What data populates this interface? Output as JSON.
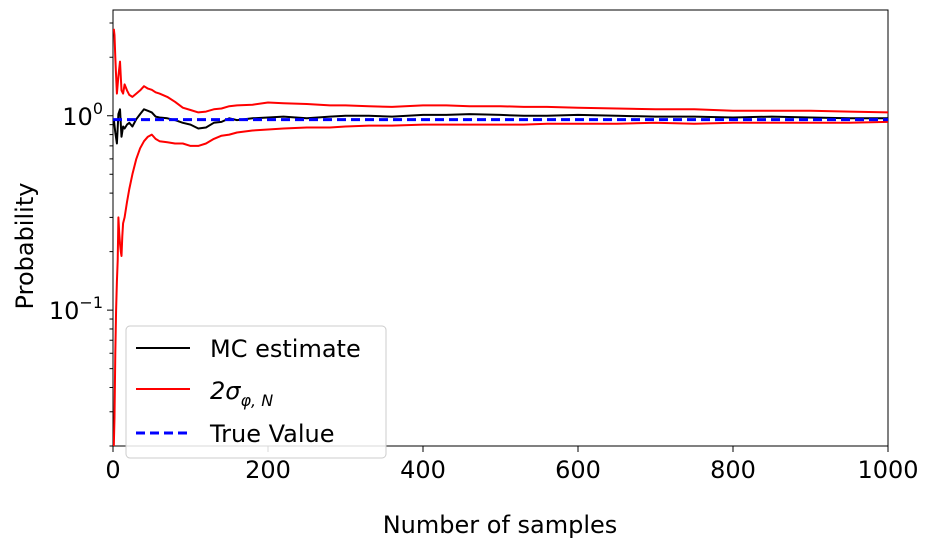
{
  "chart_data": {
    "type": "line",
    "title": "",
    "xlabel": "Number of samples",
    "ylabel": "Probability",
    "xlim": [
      0,
      1000
    ],
    "ylim": [
      0.02,
      3.5
    ],
    "yscale": "log",
    "grid": false,
    "legend_position": "lower-left",
    "x_ticks": [
      0,
      200,
      400,
      600,
      800,
      1000
    ],
    "x_tick_labels": [
      "0",
      "200",
      "400",
      "600",
      "800",
      "1000"
    ],
    "y_ticks": [
      {
        "value": 1.0,
        "base": "10",
        "exponent": "0"
      },
      {
        "value": 0.1,
        "base": "10",
        "exponent": "−1"
      }
    ],
    "series": [
      {
        "name": "MC estimate",
        "color": "#000000",
        "style": "solid",
        "x": [
          1,
          3,
          5,
          7,
          9,
          11,
          13,
          15,
          18,
          21,
          25,
          30,
          35,
          40,
          45,
          50,
          55,
          60,
          70,
          80,
          90,
          100,
          110,
          120,
          130,
          140,
          150,
          160,
          180,
          200,
          220,
          250,
          280,
          300,
          330,
          360,
          400,
          430,
          460,
          500,
          530,
          560,
          600,
          650,
          700,
          750,
          800,
          850,
          900,
          950,
          1000
        ],
        "y": [
          0.96,
          0.82,
          0.72,
          1.02,
          1.08,
          0.78,
          0.88,
          0.86,
          0.9,
          0.92,
          0.88,
          0.96,
          1.02,
          1.08,
          1.06,
          1.04,
          0.99,
          0.98,
          0.97,
          0.95,
          0.92,
          0.9,
          0.86,
          0.87,
          0.92,
          0.93,
          0.97,
          0.95,
          0.97,
          0.98,
          0.99,
          0.97,
          0.99,
          1.0,
          1.0,
          0.99,
          1.01,
          1.01,
          1.02,
          1.01,
          1.0,
          1.0,
          1.01,
          1.0,
          0.99,
          0.99,
          0.98,
          0.99,
          0.98,
          0.97,
          0.97
        ]
      },
      {
        "name": "2σ_{φ,N}",
        "color": "#ff0000",
        "style": "solid",
        "x": [
          1,
          2,
          3,
          4,
          5,
          7,
          9,
          11,
          13,
          15,
          18,
          21,
          25,
          30,
          35,
          40,
          45,
          50,
          55,
          60,
          70,
          80,
          90,
          100,
          110,
          120,
          130,
          140,
          150,
          160,
          180,
          200,
          220,
          250,
          280,
          300,
          330,
          360,
          400,
          430,
          460,
          500,
          530,
          560,
          600,
          650,
          700,
          750,
          800,
          850,
          900,
          950,
          1000
        ],
        "y": [
          2.8,
          2.6,
          2.0,
          1.6,
          1.3,
          1.6,
          1.9,
          1.35,
          1.3,
          1.45,
          1.35,
          1.28,
          1.25,
          1.3,
          1.35,
          1.42,
          1.38,
          1.36,
          1.32,
          1.3,
          1.25,
          1.18,
          1.1,
          1.07,
          1.04,
          1.05,
          1.08,
          1.09,
          1.12,
          1.13,
          1.14,
          1.17,
          1.16,
          1.15,
          1.13,
          1.13,
          1.12,
          1.11,
          1.13,
          1.13,
          1.12,
          1.12,
          1.11,
          1.11,
          1.1,
          1.09,
          1.08,
          1.08,
          1.06,
          1.06,
          1.06,
          1.05,
          1.04
        ]
      },
      {
        "name": "",
        "color": "#ff0000",
        "style": "solid",
        "x": [
          1,
          2,
          3,
          4,
          5,
          6,
          7,
          8,
          9,
          10,
          11,
          12,
          13,
          15,
          18,
          21,
          25,
          30,
          35,
          40,
          45,
          50,
          55,
          60,
          70,
          80,
          90,
          100,
          110,
          120,
          130,
          140,
          150,
          160,
          180,
          200,
          220,
          250,
          280,
          300,
          330,
          360,
          400,
          430,
          460,
          500,
          530,
          560,
          600,
          650,
          700,
          750,
          800,
          850,
          900,
          950,
          1000
        ],
        "y": [
          0.02,
          0.028,
          0.06,
          0.1,
          0.14,
          0.18,
          0.3,
          0.25,
          0.22,
          0.2,
          0.19,
          0.24,
          0.28,
          0.3,
          0.36,
          0.42,
          0.5,
          0.6,
          0.68,
          0.74,
          0.78,
          0.8,
          0.76,
          0.74,
          0.73,
          0.72,
          0.72,
          0.7,
          0.7,
          0.72,
          0.76,
          0.79,
          0.8,
          0.82,
          0.84,
          0.85,
          0.86,
          0.87,
          0.87,
          0.88,
          0.89,
          0.89,
          0.9,
          0.9,
          0.9,
          0.9,
          0.9,
          0.91,
          0.91,
          0.91,
          0.92,
          0.91,
          0.92,
          0.92,
          0.92,
          0.92,
          0.93
        ]
      },
      {
        "name": "True Value",
        "color": "#0000ff",
        "style": "dashed",
        "x": [
          0,
          1000
        ],
        "y": [
          0.955,
          0.955
        ]
      }
    ],
    "legend": [
      {
        "label": "MC estimate",
        "color": "#000000",
        "style": "solid"
      },
      {
        "label_base": "2σ",
        "label_sub": "φ, N",
        "color": "#ff0000",
        "style": "solid"
      },
      {
        "label": "True Value",
        "color": "#0000ff",
        "style": "dashed"
      }
    ]
  }
}
